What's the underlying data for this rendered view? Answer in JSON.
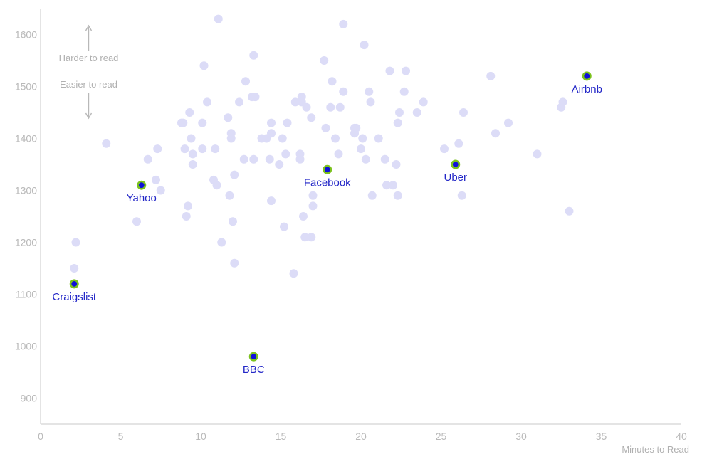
{
  "chart_data": {
    "type": "scatter",
    "xlabel": "Minutes to Read",
    "ylabel": "",
    "xlim": [
      0,
      40
    ],
    "ylim": [
      850,
      1650
    ],
    "x_ticks": [
      0,
      5,
      10,
      15,
      20,
      25,
      30,
      35,
      40
    ],
    "y_ticks": [
      900,
      1000,
      1100,
      1200,
      1300,
      1400,
      1500,
      1600
    ],
    "grid": false,
    "colors": {
      "background_point": "#dcdcf7",
      "highlight_fill": "#1010d8",
      "highlight_ring": "#7cc21e",
      "highlight_label": "#2327c7",
      "axis": "#c8c8c8",
      "tick_label": "#b9b9b9"
    },
    "annotations": {
      "up": "Harder to read",
      "down": "Easier to read"
    },
    "points": [
      [
        2.1,
        1150
      ],
      [
        2.2,
        1200
      ],
      [
        4.1,
        1390
      ],
      [
        6.0,
        1240
      ],
      [
        6.7,
        1360
      ],
      [
        7.2,
        1320
      ],
      [
        7.3,
        1380
      ],
      [
        7.5,
        1300
      ],
      [
        8.8,
        1430
      ],
      [
        8.9,
        1430
      ],
      [
        9.0,
        1380
      ],
      [
        9.1,
        1250
      ],
      [
        9.2,
        1270
      ],
      [
        9.3,
        1450
      ],
      [
        9.4,
        1400
      ],
      [
        9.5,
        1370
      ],
      [
        9.5,
        1350
      ],
      [
        10.1,
        1430
      ],
      [
        10.1,
        1380
      ],
      [
        10.2,
        1540
      ],
      [
        10.4,
        1470
      ],
      [
        10.8,
        1320
      ],
      [
        10.9,
        1380
      ],
      [
        11.0,
        1310
      ],
      [
        11.1,
        1630
      ],
      [
        11.3,
        1200
      ],
      [
        11.7,
        1440
      ],
      [
        11.8,
        1290
      ],
      [
        11.9,
        1410
      ],
      [
        11.9,
        1400
      ],
      [
        12.0,
        1240
      ],
      [
        12.1,
        1160
      ],
      [
        12.1,
        1330
      ],
      [
        12.4,
        1470
      ],
      [
        12.7,
        1360
      ],
      [
        12.8,
        1510
      ],
      [
        13.2,
        1480
      ],
      [
        13.3,
        1360
      ],
      [
        13.3,
        1560
      ],
      [
        13.4,
        1480
      ],
      [
        13.8,
        1400
      ],
      [
        14.1,
        1400
      ],
      [
        14.3,
        1360
      ],
      [
        14.4,
        1280
      ],
      [
        14.4,
        1410
      ],
      [
        14.4,
        1430
      ],
      [
        14.9,
        1350
      ],
      [
        15.1,
        1400
      ],
      [
        15.2,
        1230
      ],
      [
        15.3,
        1370
      ],
      [
        15.4,
        1430
      ],
      [
        15.8,
        1140
      ],
      [
        15.9,
        1470
      ],
      [
        16.2,
        1370
      ],
      [
        16.2,
        1360
      ],
      [
        16.3,
        1480
      ],
      [
        16.3,
        1470
      ],
      [
        16.4,
        1250
      ],
      [
        16.5,
        1210
      ],
      [
        16.6,
        1460
      ],
      [
        16.9,
        1210
      ],
      [
        16.9,
        1440
      ],
      [
        17.0,
        1270
      ],
      [
        17.0,
        1290
      ],
      [
        17.7,
        1550
      ],
      [
        17.8,
        1420
      ],
      [
        18.1,
        1460
      ],
      [
        18.2,
        1510
      ],
      [
        18.4,
        1400
      ],
      [
        18.6,
        1370
      ],
      [
        18.7,
        1460
      ],
      [
        18.9,
        1490
      ],
      [
        18.9,
        1620
      ],
      [
        19.6,
        1420
      ],
      [
        19.6,
        1410
      ],
      [
        19.7,
        1420
      ],
      [
        20.0,
        1380
      ],
      [
        20.1,
        1400
      ],
      [
        20.2,
        1580
      ],
      [
        20.3,
        1360
      ],
      [
        20.5,
        1490
      ],
      [
        20.6,
        1470
      ],
      [
        20.7,
        1290
      ],
      [
        21.1,
        1400
      ],
      [
        21.5,
        1360
      ],
      [
        21.6,
        1310
      ],
      [
        21.8,
        1530
      ],
      [
        22.0,
        1310
      ],
      [
        22.2,
        1350
      ],
      [
        22.3,
        1290
      ],
      [
        22.3,
        1430
      ],
      [
        22.4,
        1450
      ],
      [
        22.7,
        1490
      ],
      [
        22.8,
        1530
      ],
      [
        23.5,
        1450
      ],
      [
        23.9,
        1470
      ],
      [
        25.2,
        1380
      ],
      [
        26.1,
        1390
      ],
      [
        26.3,
        1290
      ],
      [
        26.4,
        1450
      ],
      [
        28.1,
        1520
      ],
      [
        28.4,
        1410
      ],
      [
        29.2,
        1430
      ],
      [
        31.0,
        1370
      ],
      [
        32.5,
        1460
      ],
      [
        32.6,
        1470
      ],
      [
        33.0,
        1260
      ]
    ],
    "highlights": [
      {
        "label": "Craigslist",
        "x": 2.1,
        "y": 1120
      },
      {
        "label": "Yahoo",
        "x": 6.3,
        "y": 1310
      },
      {
        "label": "BBC",
        "x": 13.3,
        "y": 980
      },
      {
        "label": "Facebook",
        "x": 17.9,
        "y": 1340
      },
      {
        "label": "Uber",
        "x": 25.9,
        "y": 1350
      },
      {
        "label": "Airbnb",
        "x": 34.1,
        "y": 1520
      }
    ]
  }
}
